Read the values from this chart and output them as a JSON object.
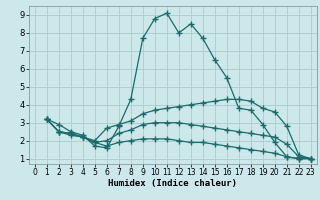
{
  "xlabel": "Humidex (Indice chaleur)",
  "background_color": "#cce8ea",
  "grid_color": "#aacccc",
  "line_color": "#1a6b6b",
  "xlim": [
    -0.5,
    23.5
  ],
  "ylim": [
    0.7,
    9.5
  ],
  "xticks": [
    0,
    1,
    2,
    3,
    4,
    5,
    6,
    7,
    8,
    9,
    10,
    11,
    12,
    13,
    14,
    15,
    16,
    17,
    18,
    19,
    20,
    21,
    22,
    23
  ],
  "yticks": [
    1,
    2,
    3,
    4,
    5,
    6,
    7,
    8,
    9
  ],
  "lines": [
    {
      "x": [
        1,
        2,
        3,
        4,
        5,
        6,
        7,
        8,
        9,
        10,
        11,
        12,
        13,
        14,
        15,
        16,
        17,
        18,
        19,
        20,
        21,
        22,
        23
      ],
      "y": [
        3.2,
        2.9,
        2.5,
        2.3,
        1.7,
        1.6,
        2.8,
        4.3,
        7.7,
        8.8,
        9.1,
        8.0,
        8.5,
        7.7,
        6.5,
        5.5,
        3.8,
        3.7,
        2.9,
        1.9,
        1.1,
        1.0,
        1.0
      ]
    },
    {
      "x": [
        1,
        2,
        3,
        4,
        5,
        6,
        7,
        8,
        9,
        10,
        11,
        12,
        13,
        14,
        15,
        16,
        17,
        18,
        19,
        20,
        21,
        22,
        23
      ],
      "y": [
        3.2,
        2.5,
        2.3,
        2.2,
        2.0,
        2.7,
        2.9,
        3.1,
        3.5,
        3.7,
        3.8,
        3.9,
        4.0,
        4.1,
        4.2,
        4.3,
        4.3,
        4.2,
        3.8,
        3.6,
        2.8,
        1.2,
        1.0
      ]
    },
    {
      "x": [
        1,
        2,
        3,
        4,
        5,
        6,
        7,
        8,
        9,
        10,
        11,
        12,
        13,
        14,
        15,
        16,
        17,
        18,
        19,
        20,
        21,
        22,
        23
      ],
      "y": [
        3.2,
        2.5,
        2.4,
        2.2,
        1.9,
        2.0,
        2.4,
        2.6,
        2.9,
        3.0,
        3.0,
        3.0,
        2.9,
        2.8,
        2.7,
        2.6,
        2.5,
        2.4,
        2.3,
        2.2,
        1.8,
        1.1,
        1.0
      ]
    },
    {
      "x": [
        1,
        2,
        3,
        4,
        5,
        6,
        7,
        8,
        9,
        10,
        11,
        12,
        13,
        14,
        15,
        16,
        17,
        18,
        19,
        20,
        21,
        22,
        23
      ],
      "y": [
        3.2,
        2.5,
        2.4,
        2.2,
        1.9,
        1.7,
        1.9,
        2.0,
        2.1,
        2.1,
        2.1,
        2.0,
        1.9,
        1.9,
        1.8,
        1.7,
        1.6,
        1.5,
        1.4,
        1.3,
        1.1,
        1.0,
        1.0
      ]
    }
  ]
}
